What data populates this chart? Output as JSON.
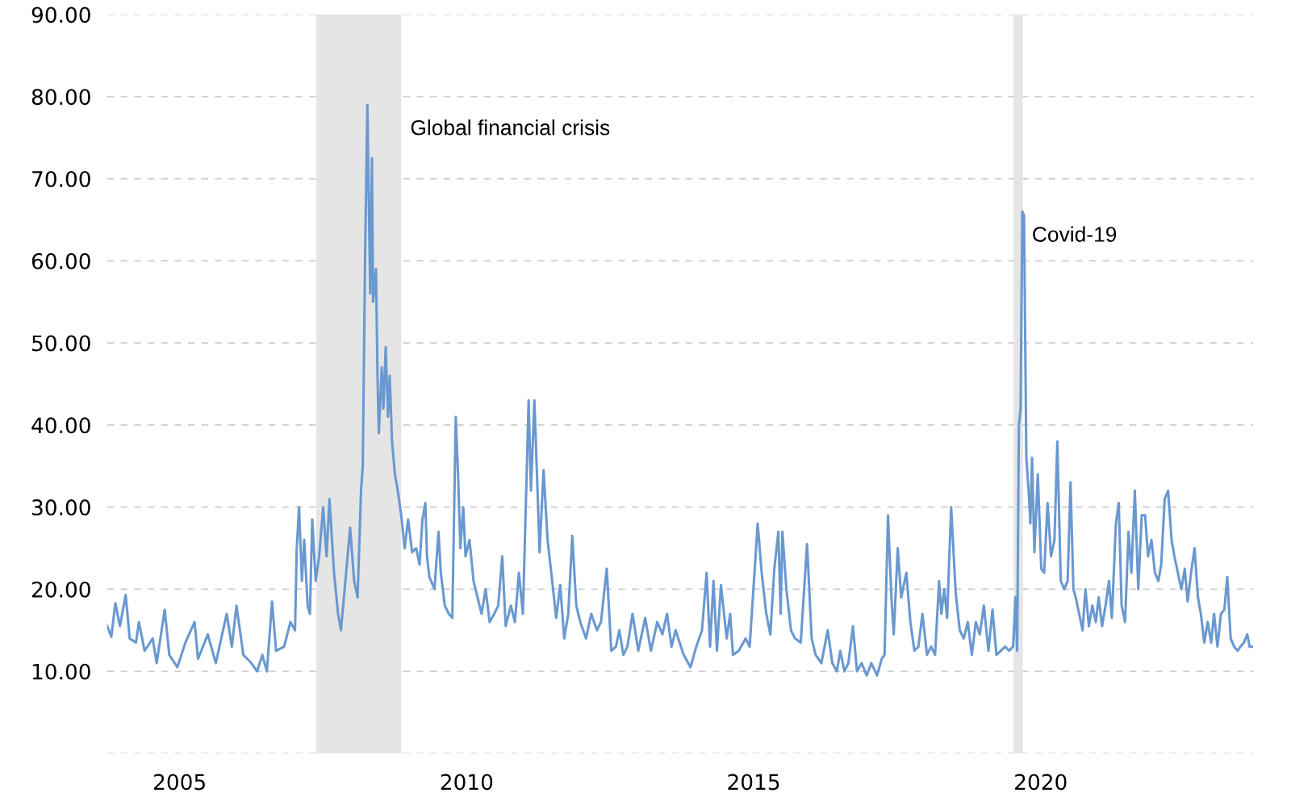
{
  "chart_data": {
    "type": "line",
    "x": [
      2003.74,
      2003.81,
      2003.88,
      2003.96,
      2004.06,
      2004.13,
      2004.24,
      2004.29,
      2004.39,
      2004.53,
      2004.6,
      2004.74,
      2004.82,
      2004.96,
      2005.1,
      2005.26,
      2005.32,
      2005.49,
      2005.63,
      2005.82,
      2005.91,
      2005.99,
      2006.11,
      2006.25,
      2006.35,
      2006.44,
      2006.52,
      2006.61,
      2006.68,
      2006.82,
      2006.93,
      2007.01,
      2007.04,
      2007.08,
      2007.13,
      2007.17,
      2007.23,
      2007.27,
      2007.31,
      2007.37,
      2007.43,
      2007.5,
      2007.56,
      2007.61,
      2007.69,
      2007.76,
      2007.81,
      2007.9,
      2007.97,
      2008.04,
      2008.1,
      2008.16,
      2008.19,
      2008.23,
      2008.27,
      2008.32,
      2008.35,
      2008.37,
      2008.42,
      2008.45,
      2008.47,
      2008.52,
      2008.55,
      2008.59,
      2008.63,
      2008.66,
      2008.7,
      2008.75,
      2008.8,
      2008.86,
      2008.92,
      2008.98,
      2009.05,
      2009.12,
      2009.18,
      2009.23,
      2009.28,
      2009.31,
      2009.35,
      2009.44,
      2009.51,
      2009.55,
      2009.62,
      2009.69,
      2009.75,
      2009.81,
      2009.85,
      2009.89,
      2009.94,
      2009.98,
      2010.05,
      2010.12,
      2010.19,
      2010.26,
      2010.33,
      2010.4,
      2010.48,
      2010.55,
      2010.62,
      2010.68,
      2010.77,
      2010.84,
      2010.91,
      2010.98,
      2011.08,
      2011.12,
      2011.18,
      2011.23,
      2011.27,
      2011.34,
      2011.41,
      2011.49,
      2011.56,
      2011.63,
      2011.7,
      2011.77,
      2011.84,
      2011.91,
      2011.98,
      2012.08,
      2012.17,
      2012.27,
      2012.34,
      2012.44,
      2012.52,
      2012.6,
      2012.66,
      2012.73,
      2012.8,
      2012.89,
      2012.99,
      2013.11,
      2013.21,
      2013.32,
      2013.41,
      2013.49,
      2013.57,
      2013.64,
      2013.78,
      2013.9,
      2014.0,
      2014.1,
      2014.18,
      2014.24,
      2014.3,
      2014.36,
      2014.43,
      2014.53,
      2014.59,
      2014.64,
      2014.74,
      2014.86,
      2014.93,
      2015.0,
      2015.07,
      2015.14,
      2015.22,
      2015.29,
      2015.36,
      2015.43,
      2015.47,
      2015.5,
      2015.57,
      2015.65,
      2015.72,
      2015.82,
      2015.93,
      2016.01,
      2016.08,
      2016.18,
      2016.29,
      2016.37,
      2016.45,
      2016.51,
      2016.58,
      2016.65,
      2016.73,
      2016.8,
      2016.88,
      2016.97,
      2017.05,
      2017.15,
      2017.23,
      2017.28,
      2017.34,
      2017.4,
      2017.44,
      2017.51,
      2017.57,
      2017.66,
      2017.73,
      2017.8,
      2017.87,
      2017.94,
      2018.02,
      2018.09,
      2018.16,
      2018.23,
      2018.27,
      2018.32,
      2018.37,
      2018.44,
      2018.52,
      2018.59,
      2018.66,
      2018.73,
      2018.8,
      2018.87,
      2018.94,
      2019.01,
      2019.09,
      2019.16,
      2019.23,
      2019.38,
      2019.45,
      2019.52,
      2019.56,
      2019.59,
      2019.62,
      2019.65,
      2019.68,
      2019.71,
      2019.75,
      2019.79,
      2019.82,
      2019.85,
      2019.89,
      2019.95,
      2020.01,
      2020.06,
      2020.12,
      2020.18,
      2020.24,
      2020.29,
      2020.35,
      2020.41,
      2020.47,
      2020.52,
      2020.57,
      2020.61,
      2020.67,
      2020.73,
      2020.78,
      2020.84,
      2020.9,
      2020.96,
      2021.01,
      2021.07,
      2021.13,
      2021.19,
      2021.24,
      2021.31,
      2021.36,
      2021.41,
      2021.47,
      2021.53,
      2021.58,
      2021.64,
      2021.7,
      2021.76,
      2021.82,
      2021.87,
      2021.93,
      2021.99,
      2022.05,
      2022.1,
      2022.16,
      2022.22,
      2022.28,
      2022.33,
      2022.39,
      2022.45,
      2022.51,
      2022.56,
      2022.62,
      2022.68,
      2022.74,
      2022.79,
      2022.85,
      2022.91,
      2022.97,
      2023.02,
      2023.08,
      2023.14,
      2023.2,
      2023.25,
      2023.31,
      2023.37,
      2023.43,
      2023.48,
      2023.54,
      2023.6,
      2023.64,
      2023.68
    ],
    "series": [
      {
        "color": "#6a98d0",
        "values": [
          15.5,
          14.2,
          18.3,
          15.5,
          19.3,
          14,
          13.5,
          16,
          12.5,
          14,
          11,
          17.5,
          12,
          10.5,
          13.5,
          16,
          11.5,
          14.5,
          11,
          17,
          13,
          18,
          12,
          11,
          10,
          12,
          10,
          18.5,
          12.5,
          13,
          16,
          15,
          25,
          30,
          21,
          26,
          18,
          17,
          28.5,
          21,
          24,
          30,
          24,
          31,
          22,
          17,
          15,
          22,
          27.5,
          21,
          19,
          32,
          35,
          60,
          79,
          56,
          72.5,
          55,
          59,
          45,
          39,
          47,
          42,
          49.5,
          41,
          46,
          38,
          34,
          32,
          29,
          25,
          28.5,
          24.5,
          25,
          23,
          28.5,
          30.5,
          24,
          21.5,
          20,
          27,
          22,
          18,
          17,
          16.5,
          41,
          34,
          25,
          30,
          24,
          26,
          21,
          19,
          17,
          20,
          16,
          17,
          18,
          24,
          15.5,
          18,
          16,
          22,
          17,
          43,
          32,
          43,
          33,
          24.5,
          34.5,
          26,
          21,
          16.5,
          20.5,
          14,
          17,
          26.5,
          18,
          16,
          14,
          17,
          15,
          16,
          22.5,
          12.5,
          13,
          15,
          12,
          13,
          17,
          12.5,
          16.5,
          12.5,
          16,
          14.5,
          17,
          13,
          15,
          12,
          10.5,
          13,
          15,
          22,
          13,
          21,
          12.5,
          20.5,
          14,
          17,
          12,
          12.5,
          14,
          13,
          20.5,
          28,
          22,
          17,
          14.5,
          22.5,
          27,
          17,
          27,
          20,
          15,
          14,
          13.5,
          25.5,
          14,
          12,
          11,
          15,
          11,
          10,
          12.5,
          10,
          11,
          15.5,
          10,
          11,
          9.5,
          11,
          9.5,
          11.5,
          12,
          29,
          19,
          14.5,
          25,
          19,
          22,
          16,
          12.5,
          13,
          17,
          12,
          13,
          12,
          21,
          17,
          20,
          16.5,
          30,
          19.5,
          15,
          14,
          16,
          12,
          16,
          14.5,
          18,
          12.5,
          17.5,
          12,
          13,
          12.5,
          13,
          19,
          12.5,
          40,
          42,
          66,
          65.5,
          36,
          32,
          28,
          36,
          24.5,
          34,
          22.5,
          22,
          30.5,
          24,
          26,
          38,
          21,
          20,
          21,
          33,
          20,
          19,
          17,
          15,
          20,
          15.5,
          18,
          16,
          19,
          15.5,
          18,
          21,
          16.5,
          28,
          30.5,
          18,
          16,
          27,
          22,
          32,
          20,
          29,
          29,
          24,
          26,
          22,
          21,
          23,
          31,
          32,
          26,
          24,
          22,
          20,
          22.5,
          18.5,
          22,
          25,
          19,
          17,
          13.5,
          16,
          13.5,
          17,
          13,
          17,
          17.5,
          21.5,
          14,
          13,
          12.5,
          13,
          13.5,
          14.5,
          13,
          13
        ]
      }
    ],
    "xlim": [
      2003.74,
      2023.7
    ],
    "xticks": [
      2005,
      2010,
      2015,
      2020
    ],
    "ylim": [
      0,
      90
    ],
    "yticks": [
      {
        "value": 0,
        "label": null
      },
      {
        "value": 10,
        "label": "10.00"
      },
      {
        "value": 20,
        "label": "20.00"
      },
      {
        "value": 30,
        "label": "30.00"
      },
      {
        "value": 40,
        "label": "40.00"
      },
      {
        "value": 50,
        "label": "50.00"
      },
      {
        "value": 60,
        "label": "60.00"
      },
      {
        "value": 70,
        "label": "70.00"
      },
      {
        "value": 80,
        "label": "80.00"
      },
      {
        "value": 90,
        "label": "90.00"
      }
    ],
    "grid": "y",
    "bands": [
      {
        "axis": "x",
        "from": 2007.38,
        "to": 2008.86,
        "label": "Global financial crisis",
        "color": "#e5e5e5"
      },
      {
        "axis": "x",
        "from": 2019.53,
        "to": 2019.69,
        "label": "Covid-19",
        "color": "#e5e5e5"
      }
    ]
  }
}
